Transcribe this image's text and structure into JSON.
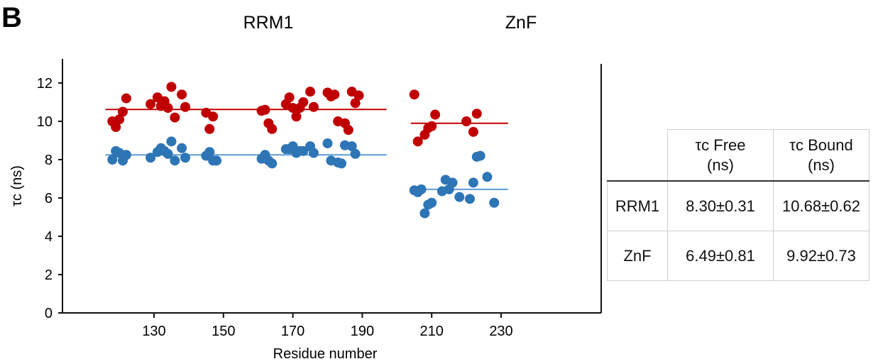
{
  "panel_label": "B",
  "sections": [
    {
      "title": "RRM1"
    },
    {
      "title": "ZnF"
    }
  ],
  "chart_data": {
    "type": "scatter",
    "xlabel": "Residue number",
    "ylabel": "τc (ns)",
    "xlim": [
      113,
      234
    ],
    "ylim": [
      0,
      13
    ],
    "xticks": [
      130,
      150,
      170,
      190,
      210,
      230
    ],
    "yticks": [
      0,
      2,
      4,
      6,
      8,
      10,
      12
    ],
    "grid": false,
    "legend": "none",
    "colors": {
      "free": "#2e75b6",
      "bound": "#c00000",
      "free_line": "#5b9bd5",
      "bound_line": "#c00000"
    },
    "series": [
      {
        "key": "bound",
        "values": [
          [
            118,
            10.0
          ],
          [
            119,
            9.7
          ],
          [
            120,
            10.1
          ],
          [
            121,
            10.5
          ],
          [
            122,
            11.2
          ],
          [
            129,
            10.9
          ],
          [
            131,
            11.25
          ],
          [
            132,
            10.8
          ],
          [
            133,
            11.05
          ],
          [
            134,
            10.7
          ],
          [
            135,
            11.8
          ],
          [
            136,
            10.2
          ],
          [
            138,
            11.4
          ],
          [
            139,
            10.75
          ],
          [
            145,
            10.45
          ],
          [
            146,
            9.6
          ],
          [
            147,
            10.25
          ],
          [
            161,
            10.55
          ],
          [
            162,
            10.6
          ],
          [
            163,
            9.9
          ],
          [
            164,
            9.6
          ],
          [
            168,
            10.9
          ],
          [
            169,
            11.25
          ],
          [
            170,
            10.7
          ],
          [
            171,
            10.25
          ],
          [
            172,
            10.7
          ],
          [
            173,
            11.0
          ],
          [
            175,
            11.55
          ],
          [
            176,
            10.75
          ],
          [
            180,
            11.5
          ],
          [
            181,
            11.3
          ],
          [
            182,
            11.4
          ],
          [
            183,
            10.0
          ],
          [
            185,
            9.9
          ],
          [
            186,
            9.55
          ],
          [
            187,
            11.55
          ],
          [
            188,
            10.95
          ],
          [
            189,
            11.35
          ],
          [
            205,
            11.4
          ],
          [
            206,
            8.95
          ],
          [
            208,
            9.3
          ],
          [
            209,
            9.65
          ],
          [
            210,
            9.75
          ],
          [
            211,
            10.35
          ],
          [
            220,
            10.0
          ],
          [
            222,
            9.45
          ],
          [
            223,
            10.4
          ]
        ]
      },
      {
        "key": "free",
        "values": [
          [
            118,
            8.0
          ],
          [
            119,
            8.45
          ],
          [
            120,
            8.35
          ],
          [
            121,
            7.95
          ],
          [
            122,
            8.25
          ],
          [
            129,
            8.1
          ],
          [
            131,
            8.4
          ],
          [
            132,
            8.6
          ],
          [
            133,
            8.45
          ],
          [
            134,
            8.3
          ],
          [
            135,
            8.95
          ],
          [
            136,
            7.95
          ],
          [
            138,
            8.6
          ],
          [
            139,
            8.1
          ],
          [
            145,
            8.2
          ],
          [
            146,
            8.4
          ],
          [
            147,
            7.95
          ],
          [
            148,
            7.95
          ],
          [
            161,
            8.05
          ],
          [
            162,
            8.25
          ],
          [
            163,
            7.95
          ],
          [
            164,
            7.8
          ],
          [
            168,
            8.55
          ],
          [
            169,
            8.55
          ],
          [
            170,
            8.7
          ],
          [
            171,
            8.35
          ],
          [
            172,
            8.45
          ],
          [
            173,
            8.45
          ],
          [
            175,
            8.7
          ],
          [
            176,
            8.35
          ],
          [
            180,
            8.85
          ],
          [
            181,
            7.95
          ],
          [
            183,
            7.85
          ],
          [
            184,
            7.8
          ],
          [
            185,
            8.75
          ],
          [
            187,
            8.7
          ],
          [
            188,
            8.3
          ],
          [
            205,
            6.4
          ],
          [
            206,
            6.3
          ],
          [
            207,
            6.45
          ],
          [
            208,
            5.2
          ],
          [
            209,
            5.65
          ],
          [
            210,
            5.75
          ],
          [
            213,
            6.35
          ],
          [
            214,
            6.95
          ],
          [
            215,
            6.45
          ],
          [
            216,
            6.8
          ],
          [
            218,
            6.05
          ],
          [
            221,
            5.95
          ],
          [
            222,
            6.8
          ],
          [
            223,
            8.15
          ],
          [
            224,
            8.2
          ],
          [
            226,
            7.1
          ],
          [
            228,
            5.75
          ]
        ]
      }
    ],
    "mean_lines": [
      {
        "key": "bound",
        "x": [
          116,
          197
        ],
        "y": 10.62
      },
      {
        "key": "free",
        "x": [
          116,
          197
        ],
        "y": 8.25
      },
      {
        "key": "bound",
        "x": [
          204,
          232
        ],
        "y": 9.9
      },
      {
        "key": "free",
        "x": [
          204,
          232
        ],
        "y": 6.45
      }
    ]
  },
  "table": {
    "headers": [
      "τc Free\n(ns)",
      "τc Bound\n(ns)"
    ],
    "rows": [
      {
        "label": "RRM1",
        "free": "8.30±0.31",
        "bound": "10.68±0.62"
      },
      {
        "label": "ZnF",
        "free": "6.49±0.81",
        "bound": "9.92±0.73"
      }
    ]
  }
}
